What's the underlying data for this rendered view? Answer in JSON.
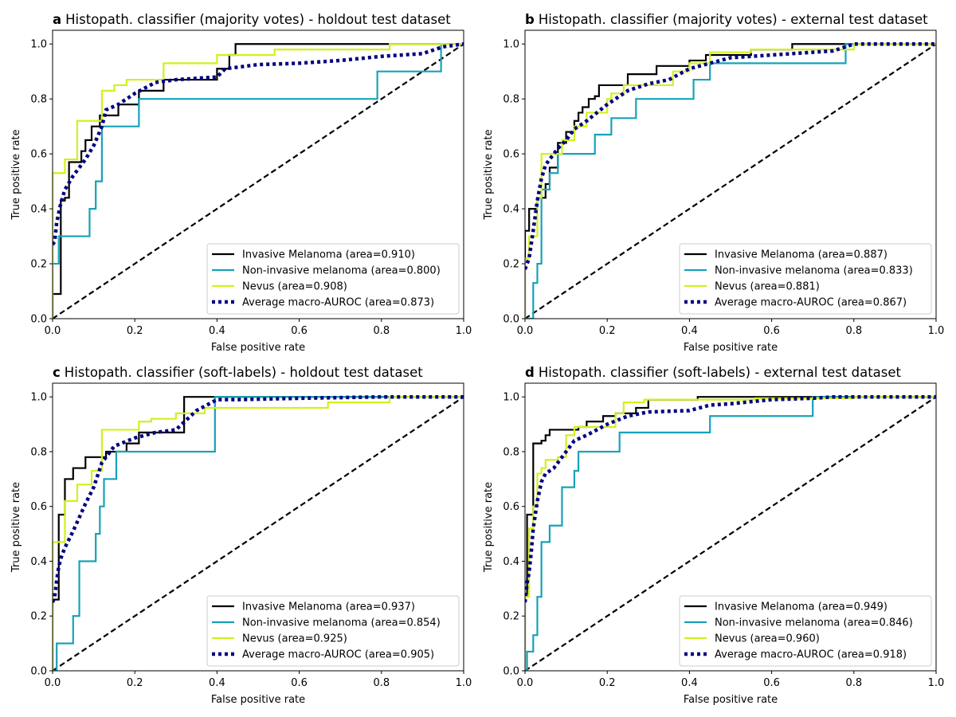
{
  "x_axis_label": "False positive rate",
  "y_axis_label": "True positive rate",
  "x_ticks": [
    0.0,
    0.2,
    0.4,
    0.6,
    0.8,
    1.0
  ],
  "y_ticks": [
    0.0,
    0.2,
    0.4,
    0.6,
    0.8,
    1.0
  ],
  "x_tick_labels": [
    "0.0",
    "0.2",
    "0.4",
    "0.6",
    "0.8",
    "1.0"
  ],
  "y_tick_labels": [
    "0.0",
    "0.2",
    "0.4",
    "0.6",
    "0.8",
    "1.0"
  ],
  "series_styles": [
    {
      "color": "#000000",
      "dash": "solid"
    },
    {
      "color": "#17a2b8",
      "dash": "solid"
    },
    {
      "color": "#d4f01a",
      "dash": "solid"
    },
    {
      "color": "#000080",
      "dash": "dotted"
    }
  ],
  "reference_line": {
    "color": "#000000",
    "dash": "dashed"
  },
  "chart_data": [
    {
      "type": "line",
      "panel_letter": "a",
      "title": "Histopath. classifier (majority votes) - holdout test dataset",
      "xlabel": "False positive rate",
      "ylabel": "True positive rate",
      "xlim": [
        0,
        1
      ],
      "ylim": [
        0,
        1.05
      ],
      "legend_position": "lower right",
      "series": [
        {
          "name": "Invasive Melanoma (area=0.910)",
          "x": [
            0,
            0,
            0.02,
            0.02,
            0.03,
            0.03,
            0.04,
            0.04,
            0.07,
            0.07,
            0.08,
            0.08,
            0.095,
            0.095,
            0.115,
            0.115,
            0.16,
            0.16,
            0.21,
            0.21,
            0.27,
            0.27,
            0.4,
            0.4,
            0.43,
            0.43,
            0.445,
            0.445,
            1.0
          ],
          "y": [
            0,
            0.09,
            0.09,
            0.43,
            0.43,
            0.44,
            0.44,
            0.57,
            0.57,
            0.61,
            0.61,
            0.65,
            0.65,
            0.7,
            0.7,
            0.74,
            0.74,
            0.78,
            0.78,
            0.83,
            0.83,
            0.87,
            0.87,
            0.91,
            0.91,
            0.96,
            0.96,
            1.0,
            1.0
          ]
        },
        {
          "name": "Non-invasive melanoma (area=0.800)",
          "x": [
            0,
            0,
            0.015,
            0.015,
            0.09,
            0.09,
            0.105,
            0.105,
            0.12,
            0.12,
            0.21,
            0.21,
            0.79,
            0.79,
            0.945,
            0.945,
            1.0
          ],
          "y": [
            0,
            0.2,
            0.2,
            0.3,
            0.3,
            0.4,
            0.4,
            0.5,
            0.5,
            0.7,
            0.7,
            0.8,
            0.8,
            0.9,
            0.9,
            1.0,
            1.0
          ]
        },
        {
          "name": "Nevus (area=0.908)",
          "x": [
            0,
            0,
            0.03,
            0.03,
            0.06,
            0.06,
            0.12,
            0.12,
            0.15,
            0.15,
            0.18,
            0.18,
            0.27,
            0.27,
            0.4,
            0.4,
            0.54,
            0.54,
            0.82,
            0.82,
            1.0
          ],
          "y": [
            0,
            0.53,
            0.53,
            0.58,
            0.58,
            0.72,
            0.72,
            0.83,
            0.83,
            0.85,
            0.85,
            0.87,
            0.87,
            0.93,
            0.93,
            0.96,
            0.96,
            0.98,
            0.98,
            1.0,
            1.0
          ]
        },
        {
          "name": "Average macro-AUROC (area=0.873)",
          "x": [
            0,
            0.005,
            0.01,
            0.02,
            0.03,
            0.05,
            0.08,
            0.1,
            0.12,
            0.13,
            0.16,
            0.2,
            0.25,
            0.3,
            0.4,
            0.42,
            0.5,
            0.6,
            0.7,
            0.8,
            0.9,
            0.95,
            1.0
          ],
          "y": [
            0.27,
            0.28,
            0.35,
            0.42,
            0.47,
            0.52,
            0.58,
            0.63,
            0.7,
            0.76,
            0.78,
            0.82,
            0.86,
            0.87,
            0.88,
            0.91,
            0.925,
            0.93,
            0.94,
            0.955,
            0.965,
            0.99,
            1.0
          ]
        }
      ]
    },
    {
      "type": "line",
      "panel_letter": "b",
      "title": "Histopath. classifier (majority votes) - external test dataset",
      "xlabel": "False positive rate",
      "ylabel": "True positive rate",
      "xlim": [
        0,
        1
      ],
      "ylim": [
        0,
        1.05
      ],
      "legend_position": "lower right",
      "series": [
        {
          "name": "Invasive Melanoma (area=0.887)",
          "x": [
            0,
            0,
            0.01,
            0.01,
            0.03,
            0.03,
            0.05,
            0.05,
            0.06,
            0.06,
            0.08,
            0.08,
            0.1,
            0.1,
            0.12,
            0.12,
            0.13,
            0.13,
            0.14,
            0.14,
            0.155,
            0.155,
            0.17,
            0.17,
            0.18,
            0.18,
            0.25,
            0.25,
            0.32,
            0.32,
            0.4,
            0.4,
            0.44,
            0.44,
            0.55,
            0.55,
            0.65,
            0.65,
            1.0
          ],
          "y": [
            0,
            0.32,
            0.32,
            0.4,
            0.4,
            0.44,
            0.44,
            0.49,
            0.49,
            0.55,
            0.55,
            0.64,
            0.64,
            0.68,
            0.68,
            0.72,
            0.72,
            0.75,
            0.75,
            0.77,
            0.77,
            0.8,
            0.8,
            0.81,
            0.81,
            0.85,
            0.85,
            0.89,
            0.89,
            0.92,
            0.92,
            0.94,
            0.94,
            0.96,
            0.96,
            0.98,
            0.98,
            1.0,
            1.0
          ]
        },
        {
          "name": "Non-invasive melanoma (area=0.833)",
          "x": [
            0,
            0.02,
            0.02,
            0.03,
            0.03,
            0.04,
            0.04,
            0.06,
            0.06,
            0.08,
            0.08,
            0.11,
            0.11,
            0.17,
            0.17,
            0.21,
            0.21,
            0.27,
            0.27,
            0.36,
            0.36,
            0.41,
            0.41,
            0.45,
            0.45,
            0.78,
            0.78,
            1.0
          ],
          "y": [
            0,
            0,
            0.13,
            0.13,
            0.2,
            0.2,
            0.47,
            0.47,
            0.53,
            0.53,
            0.6,
            0.6,
            0.6,
            0.6,
            0.67,
            0.67,
            0.73,
            0.73,
            0.8,
            0.8,
            0.8,
            0.8,
            0.87,
            0.87,
            0.93,
            0.93,
            1.0,
            1.0
          ]
        },
        {
          "name": "Nevus (area=0.881)",
          "x": [
            0,
            0,
            0.01,
            0.01,
            0.03,
            0.03,
            0.04,
            0.04,
            0.09,
            0.09,
            0.12,
            0.12,
            0.15,
            0.15,
            0.2,
            0.2,
            0.21,
            0.21,
            0.24,
            0.24,
            0.36,
            0.36,
            0.4,
            0.4,
            0.45,
            0.45,
            0.55,
            0.55,
            0.8,
            0.8,
            1.0
          ],
          "y": [
            0,
            0.22,
            0.22,
            0.3,
            0.3,
            0.44,
            0.44,
            0.6,
            0.6,
            0.65,
            0.65,
            0.7,
            0.7,
            0.75,
            0.75,
            0.8,
            0.8,
            0.82,
            0.82,
            0.85,
            0.85,
            0.9,
            0.9,
            0.93,
            0.93,
            0.97,
            0.97,
            0.98,
            0.98,
            1.0,
            1.0
          ]
        },
        {
          "name": "Average macro-AUROC (area=0.867)",
          "x": [
            0,
            0.01,
            0.02,
            0.03,
            0.04,
            0.05,
            0.06,
            0.08,
            0.1,
            0.12,
            0.15,
            0.2,
            0.25,
            0.3,
            0.35,
            0.4,
            0.45,
            0.5,
            0.6,
            0.7,
            0.75,
            0.78,
            0.8,
            0.9,
            1.0
          ],
          "y": [
            0.18,
            0.22,
            0.32,
            0.43,
            0.51,
            0.56,
            0.58,
            0.62,
            0.65,
            0.69,
            0.72,
            0.78,
            0.83,
            0.855,
            0.87,
            0.91,
            0.93,
            0.95,
            0.96,
            0.97,
            0.975,
            0.99,
            1.0,
            1.0,
            1.0
          ]
        }
      ]
    },
    {
      "type": "line",
      "panel_letter": "c",
      "title": "Histopath. classifier (soft-labels) - holdout test dataset",
      "xlabel": "False positive rate",
      "ylabel": "True positive rate",
      "xlim": [
        0,
        1
      ],
      "ylim": [
        0,
        1.05
      ],
      "legend_position": "lower right",
      "series": [
        {
          "name": "Invasive Melanoma (area=0.937)",
          "x": [
            0,
            0,
            0.015,
            0.015,
            0.03,
            0.03,
            0.05,
            0.05,
            0.08,
            0.08,
            0.13,
            0.13,
            0.18,
            0.18,
            0.21,
            0.21,
            0.32,
            0.32,
            1.0
          ],
          "y": [
            0,
            0.26,
            0.26,
            0.57,
            0.57,
            0.7,
            0.7,
            0.74,
            0.74,
            0.78,
            0.78,
            0.8,
            0.8,
            0.83,
            0.83,
            0.87,
            0.87,
            1.0,
            1.0
          ]
        },
        {
          "name": "Non-invasive melanoma (area=0.854)",
          "x": [
            0,
            0.01,
            0.01,
            0.05,
            0.05,
            0.065,
            0.065,
            0.105,
            0.105,
            0.115,
            0.115,
            0.125,
            0.125,
            0.155,
            0.155,
            0.165,
            0.165,
            0.395,
            0.395,
            1.0
          ],
          "y": [
            0,
            0,
            0.1,
            0.1,
            0.2,
            0.2,
            0.4,
            0.4,
            0.5,
            0.5,
            0.6,
            0.6,
            0.7,
            0.7,
            0.8,
            0.8,
            0.8,
            0.8,
            1.0,
            1.0
          ]
        },
        {
          "name": "Nevus (area=0.925)",
          "x": [
            0,
            0,
            0.03,
            0.03,
            0.06,
            0.06,
            0.095,
            0.095,
            0.12,
            0.12,
            0.21,
            0.21,
            0.24,
            0.24,
            0.3,
            0.3,
            0.37,
            0.37,
            0.67,
            0.67,
            0.82,
            0.82,
            1.0
          ],
          "y": [
            0,
            0.47,
            0.47,
            0.62,
            0.62,
            0.68,
            0.68,
            0.73,
            0.73,
            0.88,
            0.88,
            0.91,
            0.91,
            0.92,
            0.92,
            0.94,
            0.94,
            0.96,
            0.96,
            0.98,
            0.98,
            1.0,
            1.0
          ]
        },
        {
          "name": "Average macro-AUROC (area=0.905)",
          "x": [
            0,
            0.005,
            0.01,
            0.015,
            0.02,
            0.03,
            0.05,
            0.08,
            0.1,
            0.12,
            0.15,
            0.2,
            0.25,
            0.3,
            0.35,
            0.4,
            0.45,
            0.6,
            0.8,
            0.9,
            1.0
          ],
          "y": [
            0.25,
            0.27,
            0.33,
            0.38,
            0.41,
            0.45,
            0.51,
            0.61,
            0.67,
            0.76,
            0.82,
            0.85,
            0.87,
            0.88,
            0.95,
            0.99,
            0.99,
            0.995,
            1.0,
            1.0,
            1.0
          ]
        }
      ]
    },
    {
      "type": "line",
      "panel_letter": "d",
      "title": "Histopath. classifier (soft-labels) - external test dataset",
      "xlabel": "False positive rate",
      "ylabel": "True positive rate",
      "xlim": [
        0,
        1
      ],
      "ylim": [
        0,
        1.05
      ],
      "legend_position": "lower right",
      "series": [
        {
          "name": "Invasive Melanoma (area=0.949)",
          "x": [
            0,
            0,
            0.005,
            0.005,
            0.01,
            0.01,
            0.02,
            0.02,
            0.04,
            0.04,
            0.05,
            0.05,
            0.06,
            0.06,
            0.13,
            0.13,
            0.15,
            0.15,
            0.19,
            0.19,
            0.22,
            0.22,
            0.27,
            0.27,
            0.3,
            0.3,
            0.42,
            0.42,
            0.7,
            0.7,
            1.0
          ],
          "y": [
            0,
            0.28,
            0.28,
            0.57,
            0.57,
            0.57,
            0.57,
            0.83,
            0.83,
            0.84,
            0.84,
            0.86,
            0.86,
            0.88,
            0.88,
            0.89,
            0.89,
            0.91,
            0.91,
            0.93,
            0.93,
            0.94,
            0.94,
            0.96,
            0.96,
            0.99,
            0.99,
            1.0,
            1.0,
            1.0,
            1.0
          ]
        },
        {
          "name": "Non-invasive melanoma (area=0.846)",
          "x": [
            0,
            0.005,
            0.005,
            0.02,
            0.02,
            0.03,
            0.03,
            0.04,
            0.04,
            0.06,
            0.06,
            0.09,
            0.09,
            0.11,
            0.11,
            0.12,
            0.12,
            0.13,
            0.13,
            0.23,
            0.23,
            0.45,
            0.45,
            0.7,
            0.7,
            1.0
          ],
          "y": [
            0,
            0,
            0.07,
            0.07,
            0.13,
            0.13,
            0.27,
            0.27,
            0.47,
            0.47,
            0.53,
            0.53,
            0.67,
            0.67,
            0.67,
            0.67,
            0.73,
            0.73,
            0.8,
            0.8,
            0.87,
            0.87,
            0.93,
            0.93,
            1.0,
            1.0
          ]
        },
        {
          "name": "Nevus (area=0.960)",
          "x": [
            0,
            0,
            0.01,
            0.01,
            0.02,
            0.02,
            0.03,
            0.03,
            0.04,
            0.04,
            0.05,
            0.05,
            0.08,
            0.08,
            0.1,
            0.1,
            0.12,
            0.12,
            0.22,
            0.22,
            0.24,
            0.24,
            0.29,
            0.29,
            0.56,
            0.56,
            0.8,
            0.8,
            1.0
          ],
          "y": [
            0,
            0.27,
            0.27,
            0.52,
            0.52,
            0.6,
            0.6,
            0.72,
            0.72,
            0.74,
            0.74,
            0.77,
            0.77,
            0.78,
            0.78,
            0.86,
            0.86,
            0.89,
            0.89,
            0.94,
            0.94,
            0.98,
            0.98,
            0.99,
            0.99,
            0.995,
            0.995,
            1.0,
            1.0
          ]
        },
        {
          "name": "Average macro-AUROC (area=0.918)",
          "x": [
            0,
            0.005,
            0.01,
            0.015,
            0.02,
            0.03,
            0.04,
            0.05,
            0.07,
            0.1,
            0.12,
            0.15,
            0.2,
            0.25,
            0.3,
            0.4,
            0.45,
            0.5,
            0.6,
            0.7,
            0.75,
            0.85,
            1.0
          ],
          "y": [
            0.25,
            0.32,
            0.36,
            0.43,
            0.52,
            0.62,
            0.69,
            0.72,
            0.74,
            0.8,
            0.84,
            0.86,
            0.9,
            0.93,
            0.945,
            0.95,
            0.97,
            0.975,
            0.99,
            0.995,
            1.0,
            1.0,
            1.0
          ]
        }
      ]
    }
  ]
}
